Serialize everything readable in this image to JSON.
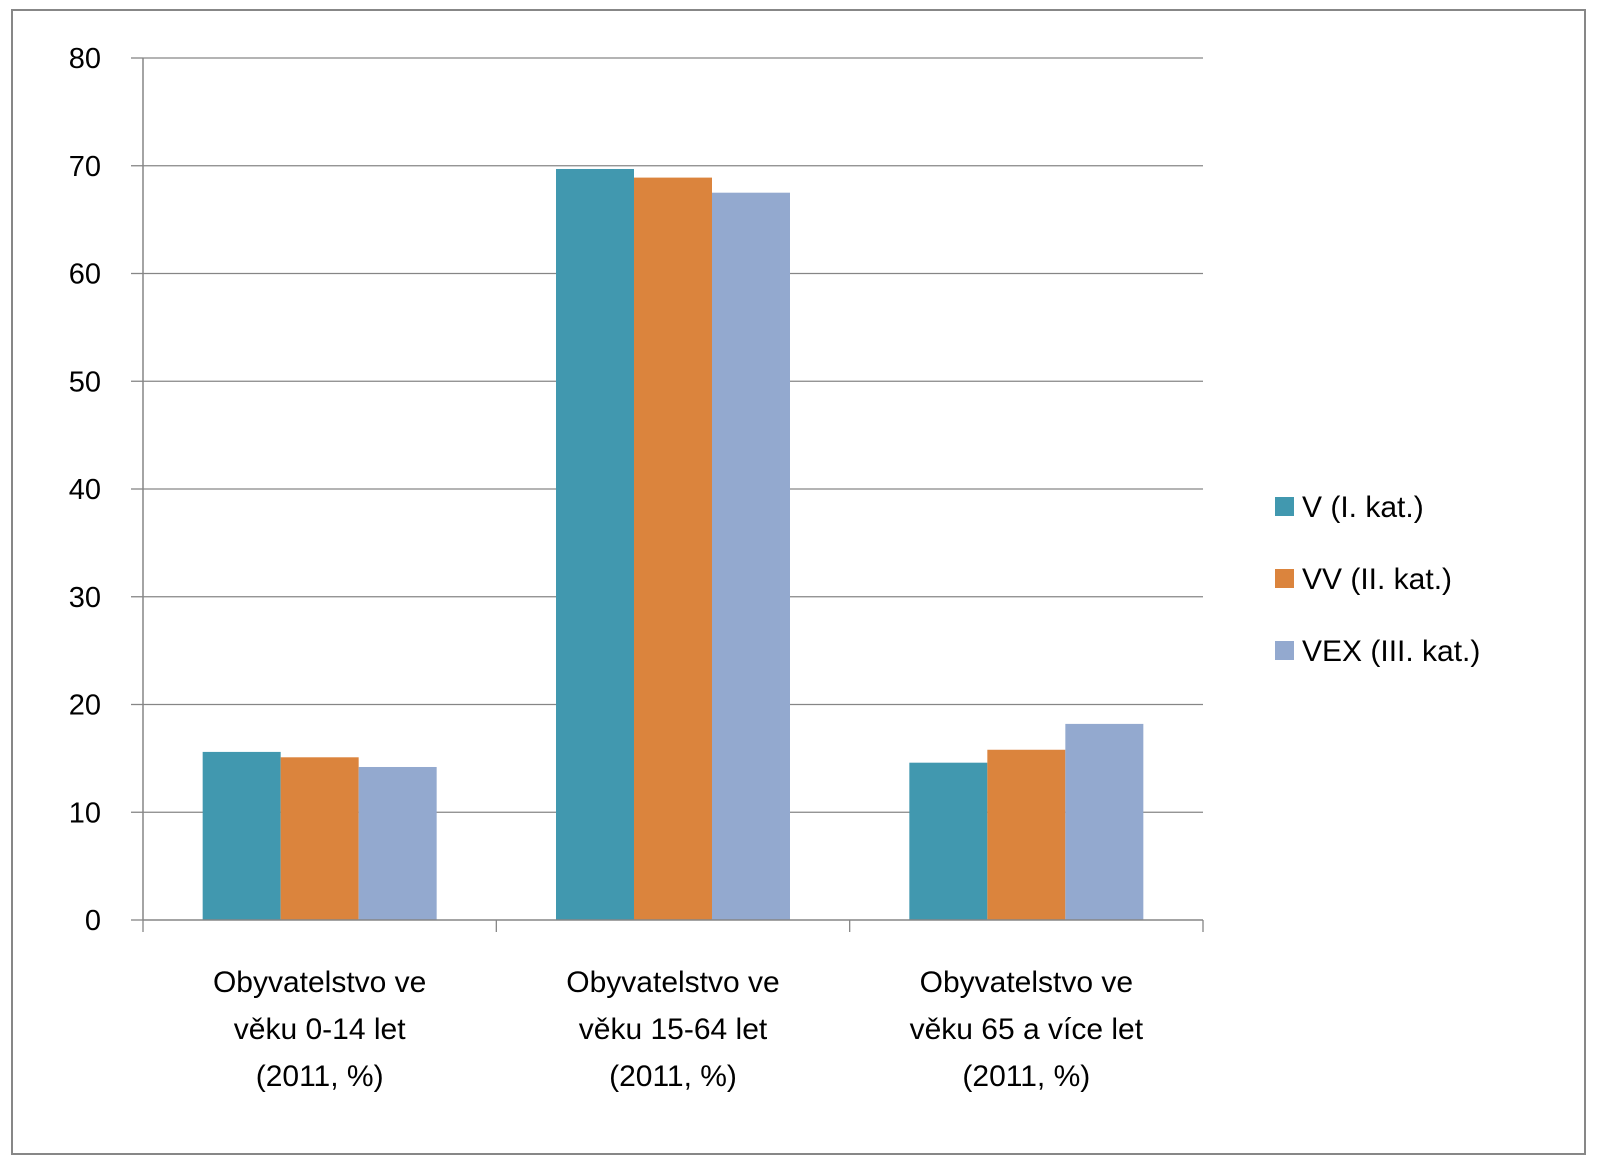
{
  "chart_data": {
    "type": "bar",
    "categories": [
      [
        "Obyvatelstvo ve",
        "věku 0-14 let",
        "(2011, %)"
      ],
      [
        "Obyvatelstvo ve",
        "věku 15-64 let",
        "(2011, %)"
      ],
      [
        "Obyvatelstvo ve",
        "věku 65 a více let",
        "(2011, %)"
      ]
    ],
    "series": [
      {
        "name": "V (I. kat.)",
        "values": [
          15.6,
          69.7,
          14.6
        ],
        "color": "#4198af"
      },
      {
        "name": "VV (II. kat.)",
        "values": [
          15.1,
          68.9,
          15.8
        ],
        "color": "#db843d"
      },
      {
        "name": "VEX (III. kat.)",
        "values": [
          14.2,
          67.5,
          18.2
        ],
        "color": "#93a9cf"
      }
    ],
    "ylim": [
      0,
      80
    ],
    "yticks": [
      0,
      10,
      20,
      30,
      40,
      50,
      60,
      70,
      80
    ],
    "grid": true,
    "legend_position": "right",
    "title": "",
    "xlabel": "",
    "ylabel": ""
  }
}
